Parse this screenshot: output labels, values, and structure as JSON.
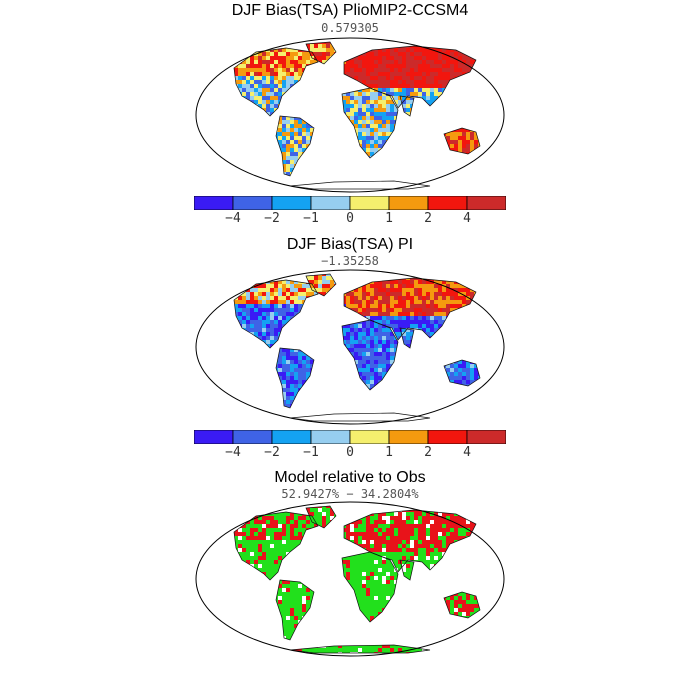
{
  "panels": [
    {
      "title": "DJF Bias(TSA) PlioMIP2-CCSM4",
      "subtitle": "0.579305",
      "style": "warm"
    },
    {
      "title": "DJF Bias(TSA) PI",
      "subtitle": "−1.35258",
      "style": "cool"
    },
    {
      "title": "Model relative to Obs",
      "subtitle": "52.9427%  −  34.2804%",
      "style": "relative"
    }
  ],
  "colorbar": {
    "colors": [
      "#3a1bf5",
      "#3f63e6",
      "#14a2f2",
      "#96cef0",
      "#f5ef6e",
      "#f59a0f",
      "#f2160e",
      "#cc2a2a"
    ],
    "tick_labels": [
      "−4",
      "−2",
      "−1",
      "0",
      "1",
      "2",
      "4"
    ]
  },
  "relative_colors": {
    "model_better": "#22e01c",
    "model_worse": "#e8131a",
    "no_data": "#ffffff"
  }
}
